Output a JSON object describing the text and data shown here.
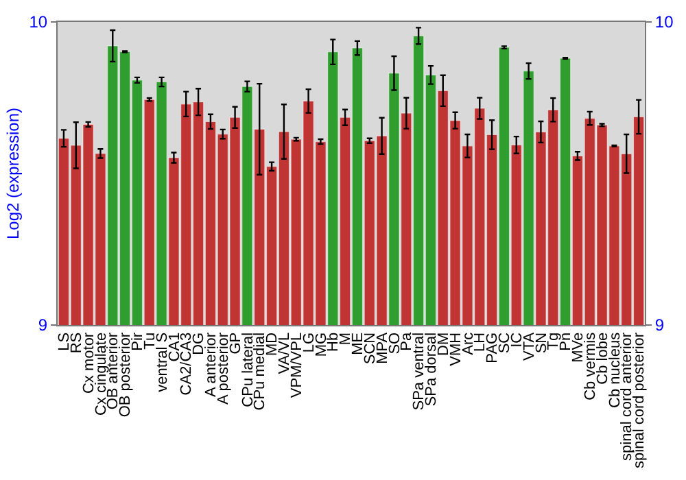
{
  "chart_data": {
    "type": "bar",
    "ylabel": "Log2 (expression)",
    "categories": [
      "LS",
      "RS",
      "Cx motor",
      "Cx cingulate",
      "OB anterior",
      "OB posterior",
      "Pir",
      "Tu",
      "ventral S",
      "CA1",
      "CA2/CA3",
      "DG",
      "A anterior",
      "A posterior",
      "GP",
      "CPu lateral",
      "CPu medial",
      "MD",
      "VA/VL",
      "VPM/VPL",
      "LG",
      "MG",
      "Hb",
      "M",
      "ME",
      "SCN",
      "MPA",
      "SO",
      "Pa",
      "SPa ventral",
      "SPa dorsal",
      "DM",
      "VMH",
      "Arc",
      "LH",
      "PAG",
      "SC",
      "IC",
      "VTA",
      "SN",
      "Tg",
      "Pn",
      "MVe",
      "Cb vermis",
      "Cb lobe",
      "Cb nucleus",
      "spinal cord anterior",
      "spinal cord posterior"
    ],
    "values": [
      9.616,
      9.593,
      9.662,
      9.566,
      9.921,
      9.902,
      9.808,
      9.744,
      9.802,
      9.552,
      9.729,
      9.736,
      9.671,
      9.63,
      9.685,
      9.787,
      9.646,
      9.523,
      9.638,
      9.613,
      9.739,
      9.605,
      9.901,
      9.685,
      9.914,
      9.608,
      9.624,
      9.831,
      9.699,
      9.954,
      9.825,
      9.773,
      9.675,
      9.591,
      9.715,
      9.628,
      9.916,
      9.594,
      9.838,
      9.637,
      9.71,
      9.88,
      9.558,
      9.682,
      9.66,
      9.591,
      9.565,
      9.687
    ],
    "errors": [
      0.028,
      0.076,
      0.008,
      0.015,
      0.052,
      0.002,
      0.009,
      0.005,
      0.015,
      0.017,
      0.041,
      0.044,
      0.024,
      0.015,
      0.035,
      0.017,
      0.15,
      0.014,
      0.09,
      0.005,
      0.039,
      0.008,
      0.041,
      0.026,
      0.023,
      0.008,
      0.06,
      0.056,
      0.051,
      0.027,
      0.03,
      0.051,
      0.027,
      0.038,
      0.035,
      0.048,
      0.004,
      0.028,
      0.026,
      0.035,
      0.039,
      0.002,
      0.014,
      0.022,
      0.004,
      0.002,
      0.064,
      0.056
    ],
    "colors": [
      "#c03434",
      "#c03434",
      "#c03434",
      "#c03434",
      "#2f9e2f",
      "#2f9e2f",
      "#2f9e2f",
      "#c03434",
      "#2f9e2f",
      "#c03434",
      "#c03434",
      "#c03434",
      "#c03434",
      "#c03434",
      "#c03434",
      "#2f9e2f",
      "#c03434",
      "#c03434",
      "#c03434",
      "#c03434",
      "#c03434",
      "#c03434",
      "#2f9e2f",
      "#c03434",
      "#2f9e2f",
      "#c03434",
      "#c03434",
      "#2f9e2f",
      "#c03434",
      "#2f9e2f",
      "#2f9e2f",
      "#c03434",
      "#c03434",
      "#c03434",
      "#c03434",
      "#c03434",
      "#2f9e2f",
      "#c03434",
      "#2f9e2f",
      "#c03434",
      "#c03434",
      "#2f9e2f",
      "#c03434",
      "#c03434",
      "#c03434",
      "#c03434",
      "#c03434",
      "#c03434"
    ],
    "ylim": [
      9,
      10
    ],
    "yticks": [
      9,
      10
    ],
    "y2lim": [
      9,
      10
    ],
    "y2ticks": [
      9,
      10
    ]
  }
}
